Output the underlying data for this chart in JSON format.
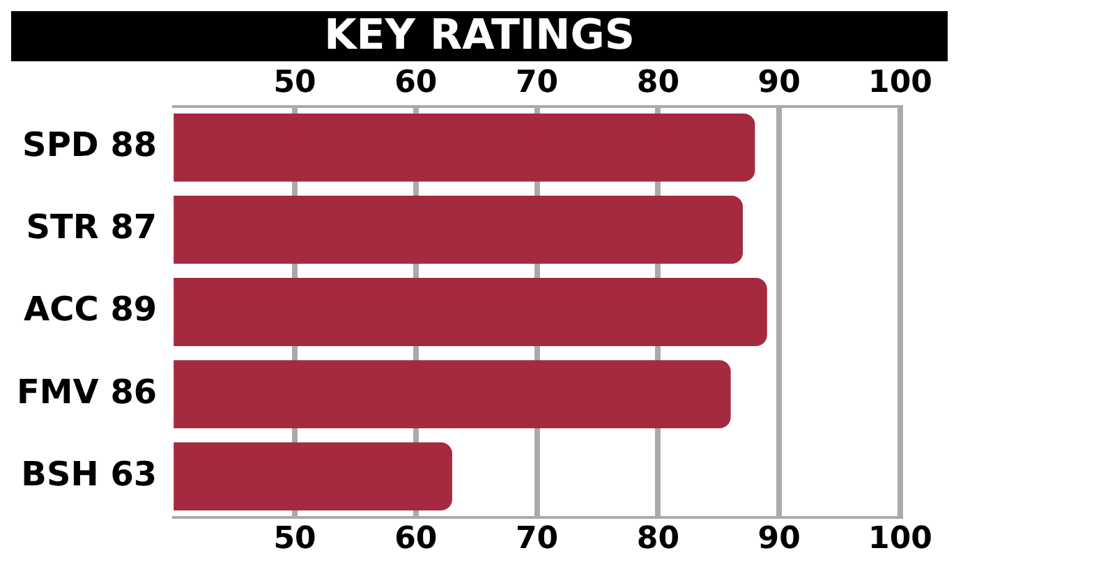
{
  "chart_data": {
    "type": "bar",
    "orientation": "horizontal",
    "title": "KEY RATINGS",
    "categories": [
      "SPD 88",
      "STR 87",
      "ACC 89",
      "FMV 86",
      "BSH 63"
    ],
    "values": [
      88,
      87,
      89,
      86,
      63
    ],
    "color": "#a52a3f",
    "xlim": [
      40,
      100
    ],
    "xticks": [
      50,
      60,
      70,
      80,
      90,
      100
    ],
    "x2lim": [
      40,
      100
    ],
    "x2ticks": [
      50,
      60,
      70,
      80,
      90,
      100
    ],
    "grid": "x",
    "legend": false
  }
}
